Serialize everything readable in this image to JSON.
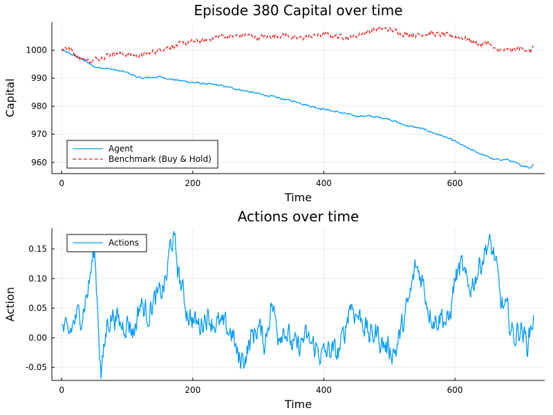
{
  "chart_data": [
    {
      "type": "line",
      "title": "Episode 380 Capital over time",
      "xlabel": "Time",
      "ylabel": "Capital",
      "xlim": [
        -15,
        737
      ],
      "ylim": [
        956,
        1010
      ],
      "xticks": [
        0,
        200,
        400,
        600
      ],
      "yticks": [
        960,
        970,
        980,
        990,
        1000
      ],
      "grid": true,
      "legend_position": "bottom-left",
      "series": [
        {
          "name": "Agent",
          "color": "#009AFA",
          "style": "solid",
          "noise": 0.25,
          "x": [
            0,
            10,
            30,
            50,
            70,
            100,
            120,
            150,
            170,
            200,
            240,
            280,
            300,
            330,
            360,
            380,
            400,
            420,
            450,
            470,
            500,
            520,
            550,
            580,
            600,
            620,
            640,
            660,
            680,
            700,
            710,
            715,
            720
          ],
          "y": [
            1000,
            999,
            997,
            994,
            993.5,
            992,
            990,
            990.5,
            989.5,
            988.5,
            987.5,
            985.5,
            984.5,
            983,
            981.5,
            980,
            979,
            978,
            976.5,
            976.5,
            975.5,
            973.5,
            972,
            969.5,
            967.5,
            965,
            963,
            961,
            961,
            959,
            958.5,
            958,
            959.5
          ]
        },
        {
          "name": "Benchmark (Buy & Hold)",
          "color": "#E81A1A",
          "style": "dashed",
          "noise": 0.7,
          "x": [
            0,
            5,
            15,
            25,
            45,
            60,
            80,
            100,
            120,
            140,
            160,
            180,
            200,
            220,
            240,
            260,
            280,
            300,
            320,
            340,
            360,
            380,
            400,
            420,
            440,
            460,
            480,
            500,
            520,
            540,
            560,
            580,
            600,
            620,
            640,
            650,
            660,
            680,
            700,
            710,
            715,
            720
          ],
          "y": [
            1000,
            1001,
            1000,
            997.5,
            996,
            997.5,
            999,
            998.5,
            998,
            999.5,
            1001,
            1002,
            1003,
            1003.5,
            1005,
            1005,
            1005.5,
            1004.5,
            1005,
            1005.5,
            1004,
            1005,
            1005.5,
            1005,
            1004.5,
            1006,
            1007.5,
            1007.5,
            1006,
            1005.5,
            1006,
            1005.5,
            1005,
            1004,
            1002,
            1003,
            1000,
            1000,
            1000.5,
            1000.5,
            999,
            1002
          ]
        }
      ]
    },
    {
      "type": "line",
      "title": "Actions over time",
      "xlabel": "Time",
      "ylabel": "Action",
      "xlim": [
        -15,
        737
      ],
      "ylim": [
        -0.072,
        0.185
      ],
      "xticks": [
        0,
        200,
        400,
        600
      ],
      "yticks": [
        -0.05,
        0.0,
        0.05,
        0.1,
        0.15
      ],
      "ytick_labels": [
        "-0.05",
        "0.00",
        "0.05",
        "0.10",
        "0.15"
      ],
      "grid": true,
      "legend_position": "top-left",
      "series": [
        {
          "name": "Actions",
          "color": "#009AFA",
          "style": "solid",
          "noise": 0.018,
          "x": [
            0,
            10,
            20,
            30,
            40,
            50,
            55,
            60,
            65,
            70,
            80,
            90,
            100,
            110,
            120,
            130,
            140,
            150,
            160,
            165,
            170,
            180,
            190,
            200,
            210,
            220,
            240,
            260,
            270,
            280,
            290,
            300,
            310,
            320,
            330,
            340,
            350,
            360,
            370,
            380,
            390,
            400,
            410,
            420,
            430,
            440,
            450,
            460,
            470,
            480,
            490,
            500,
            510,
            520,
            530,
            540,
            550,
            560,
            570,
            580,
            590,
            600,
            610,
            620,
            630,
            640,
            650,
            655,
            660,
            670,
            680,
            690,
            700,
            710,
            720
          ],
          "y": [
            0.015,
            0.0,
            0.03,
            0.04,
            0.08,
            0.15,
            0.05,
            -0.06,
            -0.02,
            0.03,
            0.04,
            0.02,
            0.03,
            0.01,
            0.06,
            0.04,
            0.06,
            0.07,
            0.1,
            0.15,
            0.17,
            0.1,
            0.05,
            0.03,
            0.02,
            0.04,
            0.02,
            0.01,
            -0.04,
            -0.03,
            0.0,
            0.02,
            -0.01,
            0.06,
            0.01,
            0.02,
            -0.01,
            -0.02,
            0.0,
            -0.01,
            -0.02,
            -0.03,
            -0.02,
            -0.03,
            0.0,
            0.06,
            0.04,
            0.03,
            0.0,
            0.01,
            -0.01,
            -0.02,
            -0.02,
            0.02,
            0.06,
            0.12,
            0.1,
            0.05,
            0.03,
            0.04,
            0.02,
            0.1,
            0.12,
            0.08,
            0.1,
            0.13,
            0.16,
            0.15,
            0.14,
            0.06,
            0.04,
            0.0,
            0.02,
            -0.01,
            0.035
          ]
        }
      ]
    }
  ]
}
